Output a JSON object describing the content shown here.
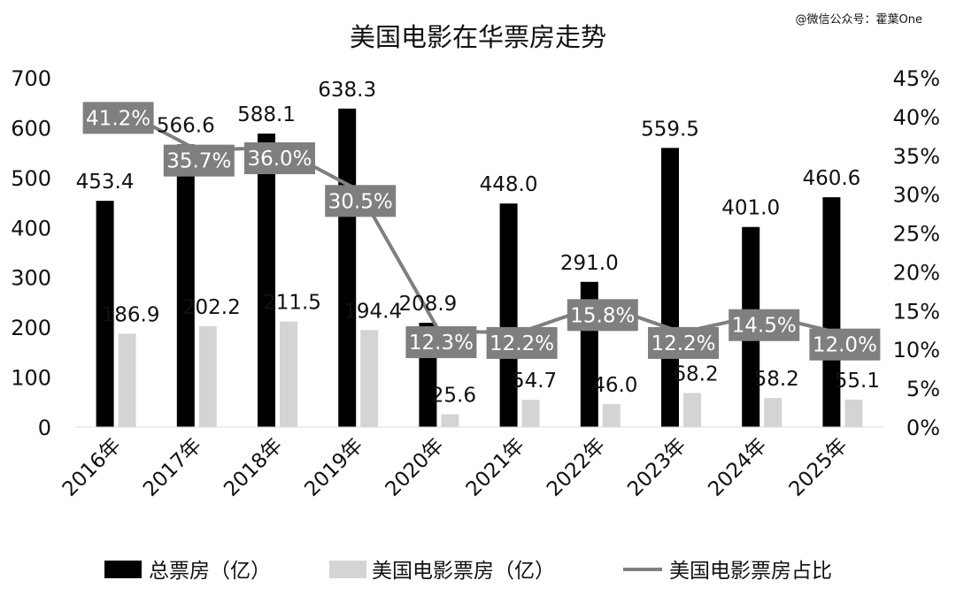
{
  "watermark": "@微信公众号：霍葉One",
  "chart_data": {
    "type": "bar",
    "title": "美国电影在华票房走势",
    "categories": [
      "2016年",
      "2017年",
      "2018年",
      "2019年",
      "2020年",
      "2021年",
      "2022年",
      "2023年",
      "2024年",
      "2025年"
    ],
    "series": [
      {
        "name": "总票房（亿）",
        "kind": "bar",
        "axis": "left",
        "color": "#000000",
        "values": [
          453.4,
          566.6,
          588.1,
          638.3,
          208.9,
          448.0,
          291.0,
          559.5,
          401.0,
          460.6
        ],
        "labels": [
          "453.4",
          "566.6",
          "588.1",
          "638.3",
          "208.9",
          "448.0",
          "291.0",
          "559.5",
          "401.0",
          "460.6"
        ]
      },
      {
        "name": "美国电影票房（亿）",
        "kind": "bar",
        "axis": "left",
        "color": "#d4d4d4",
        "values": [
          186.9,
          202.2,
          211.5,
          194.4,
          25.6,
          54.7,
          46.0,
          68.2,
          58.2,
          55.1
        ],
        "labels": [
          "186.9",
          "202.2",
          "211.5",
          "194.4",
          "25.6",
          "54.7",
          "46.0",
          "68.2",
          "58.2",
          "55.1"
        ]
      },
      {
        "name": "美国电影票房占比",
        "kind": "line",
        "axis": "right",
        "color": "#7f7f7f",
        "values": [
          41.2,
          35.7,
          36.0,
          30.5,
          12.3,
          12.2,
          15.8,
          12.2,
          14.5,
          12.0
        ],
        "labels": [
          "41.2%",
          "35.7%",
          "36.0%",
          "30.5%",
          "12.3%",
          "12.2%",
          "15.8%",
          "12.2%",
          "14.5%",
          "12.0%"
        ]
      }
    ],
    "y_left": {
      "min": 0,
      "max": 700,
      "ticks": [
        "0",
        "100",
        "200",
        "300",
        "400",
        "500",
        "600",
        "700"
      ]
    },
    "y_right": {
      "min": 0,
      "max": 45,
      "ticks": [
        "0%",
        "5%",
        "10%",
        "15%",
        "20%",
        "25%",
        "30%",
        "35%",
        "40%",
        "45%"
      ]
    },
    "grid": false,
    "legend_position": "bottom"
  }
}
